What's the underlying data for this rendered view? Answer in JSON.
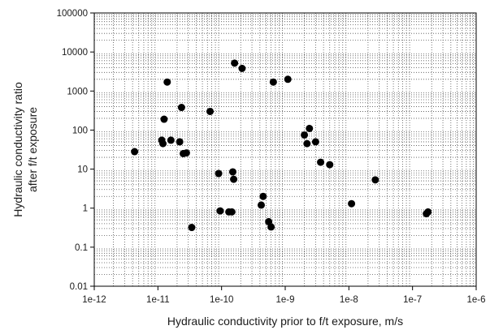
{
  "chart_data": {
    "type": "scatter",
    "title": "",
    "xlabel": "Hydraulic conductivity prior to f/t exposure, m/s",
    "ylabel_lines": [
      "Hydraulic conductivity ratio",
      "after f/t exposure"
    ],
    "xscale": "log",
    "yscale": "log",
    "xlim": [
      1e-12,
      1e-06
    ],
    "ylim": [
      0.01,
      100000
    ],
    "x_ticks": [
      {
        "value": 1e-12,
        "label": "1e-12"
      },
      {
        "value": 1e-11,
        "label": "1e-11"
      },
      {
        "value": 1e-10,
        "label": "1e-10"
      },
      {
        "value": 1e-09,
        "label": "1e-9"
      },
      {
        "value": 1e-08,
        "label": "1e-8"
      },
      {
        "value": 1e-07,
        "label": "1e-7"
      },
      {
        "value": 1e-06,
        "label": "1e-6"
      }
    ],
    "y_ticks": [
      {
        "value": 0.01,
        "label": "0.01"
      },
      {
        "value": 0.1,
        "label": "0.1"
      },
      {
        "value": 1,
        "label": "1"
      },
      {
        "value": 10,
        "label": "10"
      },
      {
        "value": 100,
        "label": "100"
      },
      {
        "value": 1000,
        "label": "1000"
      },
      {
        "value": 10000,
        "label": "10000"
      },
      {
        "value": 100000,
        "label": "100000"
      }
    ],
    "grid": "minor dotted",
    "marker_color": "#000000",
    "points": [
      {
        "x": 4.3e-12,
        "y": 28
      },
      {
        "x": 1.15e-11,
        "y": 55
      },
      {
        "x": 1.2e-11,
        "y": 45
      },
      {
        "x": 1.25e-11,
        "y": 190
      },
      {
        "x": 1.4e-11,
        "y": 1700
      },
      {
        "x": 1.6e-11,
        "y": 55
      },
      {
        "x": 2.2e-11,
        "y": 50
      },
      {
        "x": 2.35e-11,
        "y": 380
      },
      {
        "x": 2.5e-11,
        "y": 25
      },
      {
        "x": 2.8e-11,
        "y": 26
      },
      {
        "x": 3.4e-11,
        "y": 0.32
      },
      {
        "x": 6.6e-11,
        "y": 300
      },
      {
        "x": 9e-11,
        "y": 7.7
      },
      {
        "x": 9.5e-11,
        "y": 0.85
      },
      {
        "x": 1.3e-10,
        "y": 0.8
      },
      {
        "x": 1.45e-10,
        "y": 0.8
      },
      {
        "x": 1.5e-10,
        "y": 8.5
      },
      {
        "x": 1.55e-10,
        "y": 5.5
      },
      {
        "x": 1.6e-10,
        "y": 5200
      },
      {
        "x": 2.1e-10,
        "y": 3800
      },
      {
        "x": 4.2e-10,
        "y": 1.2
      },
      {
        "x": 4.5e-10,
        "y": 2
      },
      {
        "x": 5.5e-10,
        "y": 0.45
      },
      {
        "x": 6e-10,
        "y": 0.33
      },
      {
        "x": 6.5e-10,
        "y": 1700
      },
      {
        "x": 1.1e-09,
        "y": 2000
      },
      {
        "x": 2e-09,
        "y": 75
      },
      {
        "x": 2.2e-09,
        "y": 45
      },
      {
        "x": 2.4e-09,
        "y": 110
      },
      {
        "x": 3e-09,
        "y": 50
      },
      {
        "x": 3.6e-09,
        "y": 15
      },
      {
        "x": 5e-09,
        "y": 13
      },
      {
        "x": 1.1e-08,
        "y": 1.3
      },
      {
        "x": 2.6e-08,
        "y": 5.3
      },
      {
        "x": 1.65e-07,
        "y": 0.72
      },
      {
        "x": 1.75e-07,
        "y": 0.8
      }
    ]
  }
}
